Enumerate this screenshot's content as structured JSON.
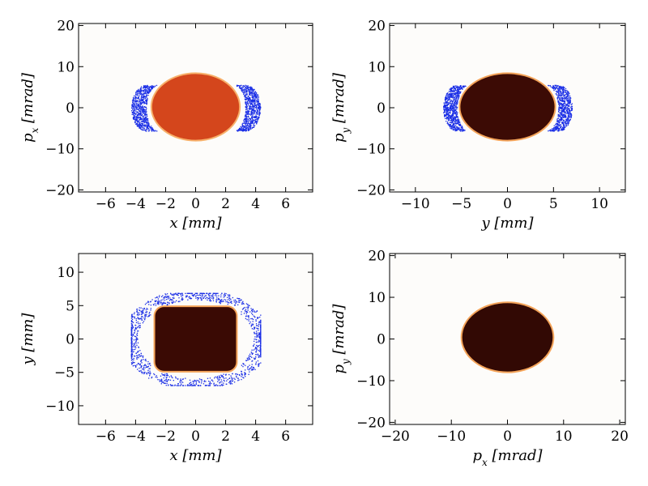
{
  "chart_data": [
    {
      "type": "scatter",
      "panel": "top-left",
      "xlabel": "x [mm]",
      "ylabel": "p_x [mrad]",
      "xlim": [
        -7.8,
        7.8
      ],
      "ylim": [
        -20.5,
        20.5
      ],
      "xticks": [
        -6,
        -4,
        -2,
        0,
        2,
        4,
        6
      ],
      "yticks": [
        -20,
        -10,
        0,
        10,
        20
      ],
      "core": {
        "shape": "ellipse",
        "center": [
          0,
          0.2
        ],
        "rx": 2.95,
        "ry": 8.2,
        "fill": "#d4461c",
        "edge": "#f7b06a"
      },
      "halo": {
        "color": "#1a2ee6",
        "shape": "crescents-lr",
        "x_inner": 3.3,
        "x_outer": 4.3,
        "y_extent": 5.6
      }
    },
    {
      "type": "scatter",
      "panel": "top-right",
      "xlabel": "y [mm]",
      "ylabel": "p_y [mrad]",
      "xlim": [
        -12.8,
        12.8
      ],
      "ylim": [
        -20.5,
        20.5
      ],
      "xticks": [
        -10,
        -5,
        0,
        5,
        10
      ],
      "yticks": [
        -20,
        -10,
        0,
        10,
        20
      ],
      "core": {
        "shape": "ellipse",
        "center": [
          0,
          0.2
        ],
        "rx": 5.2,
        "ry": 8.2,
        "fill": "#3c0b05",
        "edge": "#f4a45a"
      },
      "halo": {
        "color": "#1a2ee6",
        "shape": "crescents-lr",
        "x_inner": 5.5,
        "x_outer": 7.0,
        "y_extent": 5.6
      }
    },
    {
      "type": "scatter",
      "panel": "bottom-left",
      "xlabel": "x [mm]",
      "ylabel": "y [mm]",
      "xlim": [
        -7.8,
        7.8
      ],
      "ylim": [
        -12.8,
        12.8
      ],
      "xticks": [
        -6,
        -4,
        -2,
        0,
        2,
        4,
        6
      ],
      "yticks": [
        -10,
        -5,
        0,
        5,
        10
      ],
      "core": {
        "shape": "rounded-rect",
        "center": [
          0,
          0
        ],
        "hx": 2.75,
        "hy": 4.9,
        "fill": "#3a0a04",
        "edge": "#f4a45a"
      },
      "halo": {
        "color": "#1a2ee6",
        "shape": "ring-rect",
        "hx_outer": 4.3,
        "hy_outer": 6.9
      }
    },
    {
      "type": "scatter",
      "panel": "bottom-right",
      "xlabel": "p_x [mrad]",
      "ylabel": "p_y [mrad]",
      "xlim": [
        -21,
        21
      ],
      "ylim": [
        -20.5,
        20.5
      ],
      "xticks": [
        -20,
        -10,
        0,
        10,
        20
      ],
      "yticks": [
        -20,
        -10,
        0,
        10,
        20
      ],
      "core": {
        "shape": "ellipse",
        "center": [
          0,
          0.4
        ],
        "rx": 8.2,
        "ry": 8.4,
        "fill": "#320904",
        "edge": "#f4a45a"
      },
      "halo": null
    }
  ]
}
